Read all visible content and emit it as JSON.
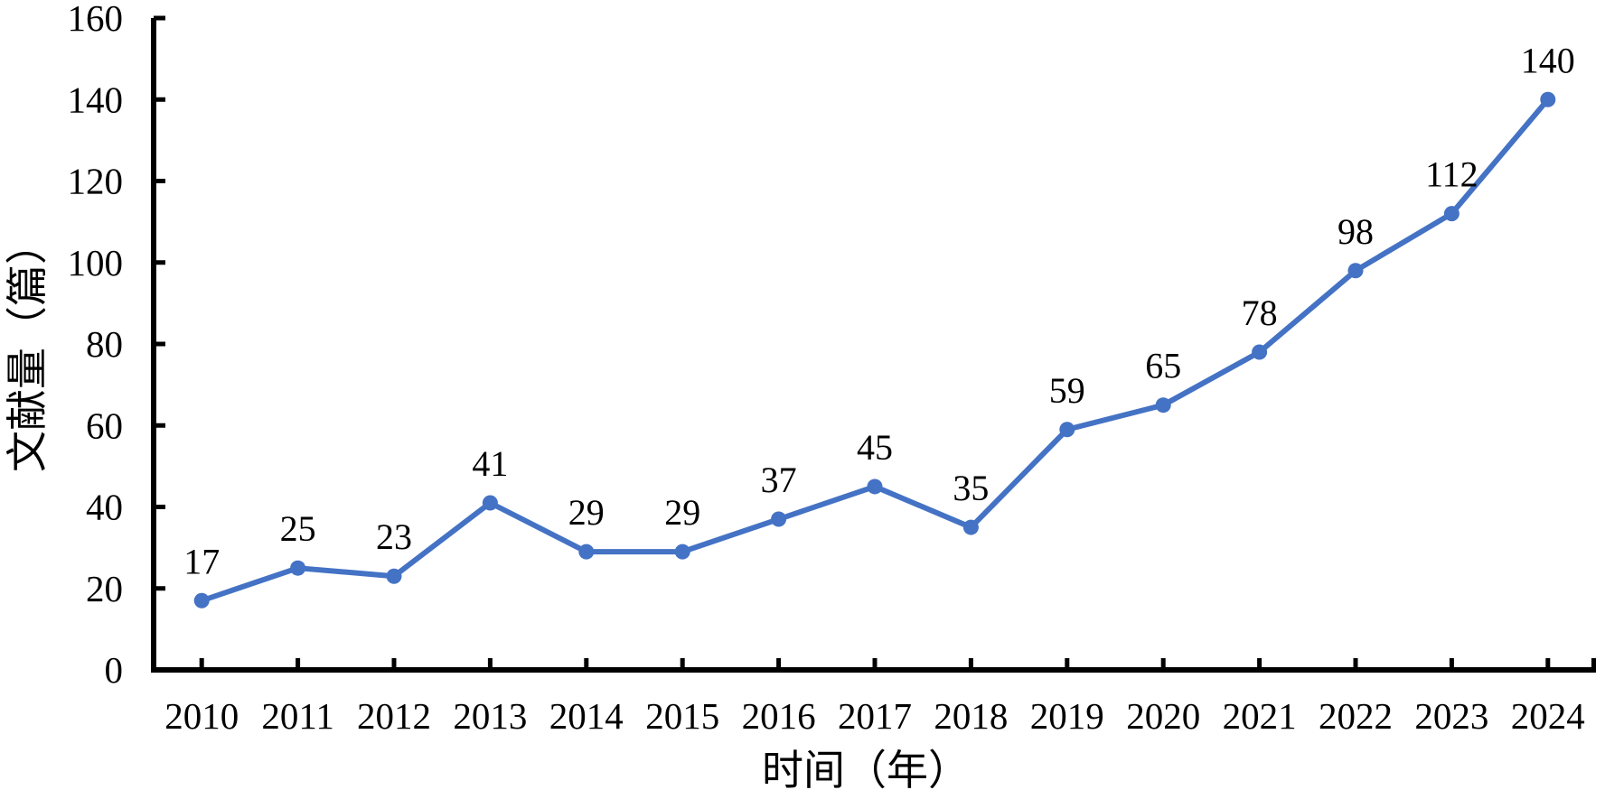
{
  "chart_data": {
    "type": "line",
    "title": "",
    "xlabel": "时间（年）",
    "ylabel": "文献量（篇）",
    "categories": [
      "2010",
      "2011",
      "2012",
      "2013",
      "2014",
      "2015",
      "2016",
      "2017",
      "2018",
      "2019",
      "2020",
      "2021",
      "2022",
      "2023",
      "2024"
    ],
    "values": [
      17,
      25,
      23,
      41,
      29,
      29,
      37,
      45,
      35,
      59,
      65,
      78,
      98,
      112,
      140
    ],
    "ylim": [
      0,
      160
    ],
    "ytick_step": 20,
    "yticks": [
      0,
      20,
      40,
      60,
      80,
      100,
      120,
      140,
      160
    ],
    "grid": "off",
    "legend": "none",
    "data_labels": "above-center",
    "marker": "circle",
    "line_color": "#4472C4",
    "axis_color": "#000000",
    "text_color": "#000000",
    "background_color": "#FFFFFF"
  }
}
